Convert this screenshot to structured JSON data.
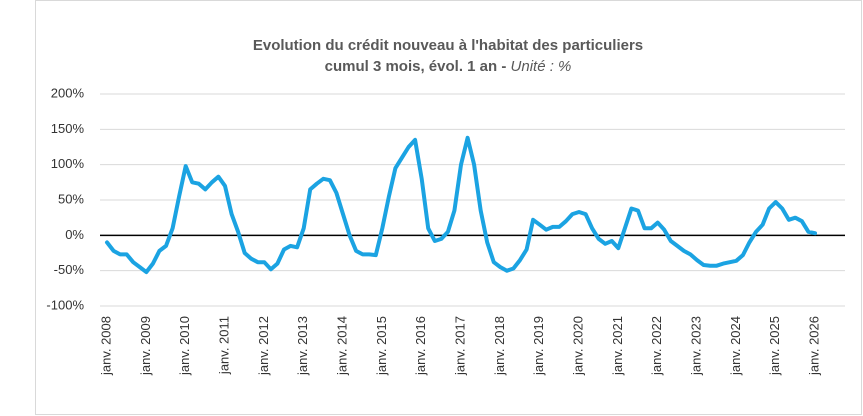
{
  "chart_data": {
    "type": "line",
    "title": "Evolution du crédit nouveau à l'habitat des particuliers",
    "subtitle": "cumul 3 mois, évol. 1 an -",
    "unit": "Unité : %",
    "categories": [
      "janv. 2008",
      null,
      null,
      null,
      null,
      null,
      "janv. 2009",
      null,
      null,
      null,
      null,
      null,
      "janv. 2010",
      null,
      null,
      null,
      null,
      null,
      "janv. 2011",
      null,
      null,
      null,
      null,
      null,
      "janv. 2012",
      null,
      null,
      null,
      null,
      null,
      "janv. 2013",
      null,
      null,
      null,
      null,
      null,
      "janv. 2014",
      null,
      null,
      null,
      null,
      null,
      "janv. 2015",
      null,
      null,
      null,
      null,
      null,
      "janv. 2016",
      null,
      null,
      null,
      null,
      null,
      "janv. 2017",
      null,
      null,
      null,
      null,
      null,
      "janv. 2018",
      null,
      null,
      null,
      null,
      null,
      "janv. 2019",
      null,
      null,
      null,
      null,
      null,
      "janv. 2020",
      null,
      null,
      null,
      null,
      null,
      "janv. 2021",
      null,
      null,
      null,
      null,
      null,
      "janv. 2022",
      null,
      null,
      null,
      null,
      null,
      "janv. 2023",
      null,
      null,
      null,
      null,
      null,
      "janv. 2024",
      null,
      null,
      null,
      null,
      null,
      "janv. 2025",
      null,
      null,
      null,
      null,
      null,
      "janv. 2026"
    ],
    "series": [
      {
        "name": "Crédit nouveau à l'habitat",
        "color": "#1ba3e2",
        "values": [
          -10,
          -22,
          -27,
          -27,
          -38,
          -45,
          -52,
          -40,
          -22,
          -15,
          10,
          55,
          98,
          75,
          73,
          65,
          75,
          83,
          70,
          30,
          5,
          -25,
          -33,
          -38,
          -38,
          -48,
          -40,
          -20,
          -15,
          -17,
          10,
          65,
          73,
          80,
          78,
          60,
          30,
          0,
          -22,
          -27,
          -27,
          -28,
          10,
          55,
          95,
          110,
          125,
          135,
          80,
          10,
          -8,
          -5,
          5,
          35,
          100,
          138,
          100,
          35,
          -10,
          -38,
          -45,
          -50,
          -47,
          -35,
          -20,
          22,
          15,
          8,
          12,
          12,
          20,
          30,
          33,
          30,
          10,
          -5,
          -12,
          -8,
          -18,
          10,
          38,
          35,
          10,
          10,
          18,
          8,
          -8,
          -15,
          -22,
          -27,
          -35,
          -42,
          -43,
          -43,
          -40,
          -38,
          -36,
          -28,
          -10,
          5,
          15,
          38,
          47,
          38,
          22,
          25,
          20,
          5,
          3
        ]
      }
    ],
    "ylim": [
      -100,
      200
    ],
    "yticks": [
      {
        "value": -100,
        "label": "-100%"
      },
      {
        "value": -50,
        "label": "-50%"
      },
      {
        "value": 0,
        "label": "0%"
      },
      {
        "value": 50,
        "label": "50%"
      },
      {
        "value": 100,
        "label": "100%"
      },
      {
        "value": 150,
        "label": "150%"
      },
      {
        "value": 200,
        "label": "200%"
      }
    ],
    "grid": true
  }
}
